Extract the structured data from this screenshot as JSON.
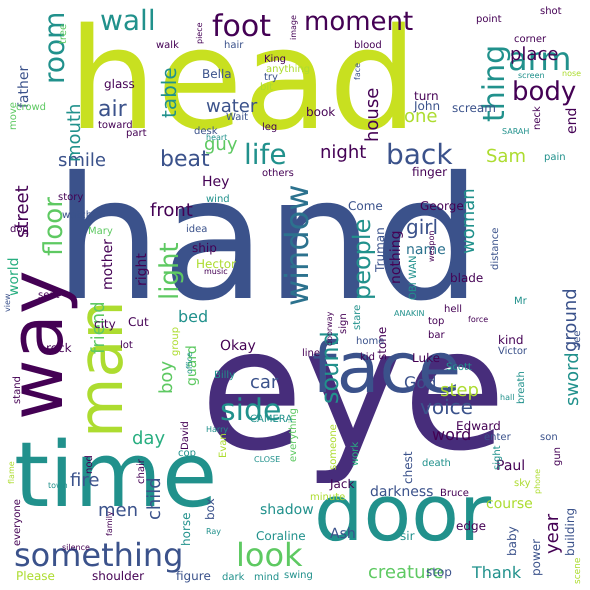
{
  "word_cloud": {
    "colors": {
      "dark_purple": "#440154",
      "deep_indigo": "#472d7b",
      "indigo": "#3b528b",
      "steel_blue": "#2c728e",
      "teal": "#21918c",
      "sea_green": "#28ae80",
      "green": "#5ec962",
      "lime": "#addc30",
      "yellow_green": "#c8e020"
    },
    "words": [
      {
        "text": "hand",
        "color": "#3b528b"
      },
      {
        "text": "eye",
        "color": "#472d7b"
      },
      {
        "text": "head",
        "color": "#c8e020"
      },
      {
        "text": "door",
        "color": "#21918c"
      },
      {
        "text": "face",
        "color": "#3b528b"
      },
      {
        "text": "time",
        "color": "#21918c"
      },
      {
        "text": "way",
        "color": "#440154"
      },
      {
        "text": "man",
        "color": "#addc30"
      },
      {
        "text": "something",
        "color": "#3b528b"
      },
      {
        "text": "look",
        "color": "#5ec962"
      },
      {
        "text": "foot",
        "color": "#440154"
      },
      {
        "text": "moment",
        "color": "#440154"
      },
      {
        "text": "wall",
        "color": "#21918c"
      },
      {
        "text": "room",
        "color": "#21918c"
      },
      {
        "text": "arm",
        "color": "#21918c"
      },
      {
        "text": "thing",
        "color": "#21918c"
      },
      {
        "text": "body",
        "color": "#440154"
      },
      {
        "text": "side",
        "color": "#21918c"
      },
      {
        "text": "window",
        "color": "#2c728e"
      },
      {
        "text": "floor",
        "color": "#5ec962"
      },
      {
        "text": "light",
        "color": "#5ec962"
      },
      {
        "text": "life",
        "color": "#21918c"
      },
      {
        "text": "beat",
        "color": "#3b528b"
      },
      {
        "text": "back",
        "color": "#3b528b"
      },
      {
        "text": "people",
        "color": "#21918c"
      },
      {
        "text": "sound",
        "color": "#21918c"
      },
      {
        "text": "voice",
        "color": "#3b528b"
      },
      {
        "text": "creature",
        "color": "#5ec962"
      },
      {
        "text": "table",
        "color": "#21918c"
      },
      {
        "text": "water",
        "color": "#3b528b"
      },
      {
        "text": "air",
        "color": "#3b528b"
      },
      {
        "text": "smile",
        "color": "#3b528b"
      },
      {
        "text": "place",
        "color": "#440154"
      },
      {
        "text": "house",
        "color": "#440154"
      },
      {
        "text": "one",
        "color": "#addc30"
      },
      {
        "text": "night",
        "color": "#440154"
      },
      {
        "text": "guy",
        "color": "#5ec962"
      },
      {
        "text": "Sam",
        "color": "#addc30"
      },
      {
        "text": "street",
        "color": "#440154"
      },
      {
        "text": "mouth",
        "color": "#21918c"
      },
      {
        "text": "front",
        "color": "#440154"
      },
      {
        "text": "Hey",
        "color": "#440154"
      },
      {
        "text": "girl",
        "color": "#3b528b"
      },
      {
        "text": "woman",
        "color": "#21918c"
      },
      {
        "text": "name",
        "color": "#2c728e"
      },
      {
        "text": "nothing",
        "color": "#440154"
      },
      {
        "text": "ground",
        "color": "#3b528b"
      },
      {
        "text": "sword",
        "color": "#21918c"
      },
      {
        "text": "year",
        "color": "#440154"
      },
      {
        "text": "step",
        "color": "#addc30"
      },
      {
        "text": "God",
        "color": "#3b528b"
      },
      {
        "text": "car",
        "color": "#3b528b"
      },
      {
        "text": "friend",
        "color": "#5ec962"
      },
      {
        "text": "mother",
        "color": "#440154"
      },
      {
        "text": "boy",
        "color": "#5ec962"
      },
      {
        "text": "day",
        "color": "#28ae80"
      },
      {
        "text": "bed",
        "color": "#21918c"
      },
      {
        "text": "guard",
        "color": "#5ec962"
      },
      {
        "text": "fire",
        "color": "#3b528b"
      },
      {
        "text": "men",
        "color": "#3b528b"
      },
      {
        "text": "child",
        "color": "#3b528b"
      },
      {
        "text": "word",
        "color": "#440154"
      },
      {
        "text": "Thank",
        "color": "#21918c"
      },
      {
        "text": "Ash",
        "color": "#3b528b"
      },
      {
        "text": "shadow",
        "color": "#21918c"
      },
      {
        "text": "darkness",
        "color": "#3b528b"
      },
      {
        "text": "Paul",
        "color": "#440154"
      },
      {
        "text": "Jack",
        "color": "#440154"
      },
      {
        "text": "father",
        "color": "#3b528b"
      },
      {
        "text": "end",
        "color": "#440154"
      },
      {
        "text": "course",
        "color": "#addc30"
      },
      {
        "text": "right",
        "color": "#440154"
      },
      {
        "text": "Okay",
        "color": "#440154"
      },
      {
        "text": "world",
        "color": "#28ae80"
      },
      {
        "text": "shoulder",
        "color": "#440154"
      },
      {
        "text": "Coraline",
        "color": "#21918c"
      },
      {
        "text": "Please",
        "color": "#addc30"
      },
      {
        "text": "building",
        "color": "#3b528b"
      },
      {
        "text": "box",
        "color": "#3b528b"
      },
      {
        "text": "stop",
        "color": "#3b528b"
      },
      {
        "text": "horse",
        "color": "#21918c"
      },
      {
        "text": "figure",
        "color": "#3b528b"
      },
      {
        "text": "power",
        "color": "#3b528b"
      },
      {
        "text": "baby",
        "color": "#3b528b"
      },
      {
        "text": "edge",
        "color": "#440154"
      },
      {
        "text": "sir",
        "color": "#21918c"
      },
      {
        "text": "chest",
        "color": "#3b528b"
      },
      {
        "text": "Luke",
        "color": "#440154"
      },
      {
        "text": "Edward",
        "color": "#440154"
      },
      {
        "text": "kind",
        "color": "#440154"
      },
      {
        "text": "stone",
        "color": "#440154"
      },
      {
        "text": "ship",
        "color": "#440154"
      },
      {
        "text": "Cut",
        "color": "#440154"
      },
      {
        "text": "rock",
        "color": "#440154"
      },
      {
        "text": "city",
        "color": "#440154"
      },
      {
        "text": "Hector",
        "color": "#addc30"
      },
      {
        "text": "Mary",
        "color": "#5ec962"
      },
      {
        "text": "Come",
        "color": "#3b528b"
      },
      {
        "text": "George",
        "color": "#440154"
      },
      {
        "text": "finger",
        "color": "#440154"
      },
      {
        "text": "Truman",
        "color": "#3b528b"
      },
      {
        "text": "blade",
        "color": "#440154"
      },
      {
        "text": "distance",
        "color": "#3b528b"
      },
      {
        "text": "John",
        "color": "#3b528b"
      },
      {
        "text": "Bella",
        "color": "#3b528b"
      },
      {
        "text": "book",
        "color": "#440154"
      },
      {
        "text": "scream",
        "color": "#3b528b"
      },
      {
        "text": "turn",
        "color": "#440154"
      },
      {
        "text": "hair",
        "color": "#3b528b"
      },
      {
        "text": "glass",
        "color": "#440154"
      },
      {
        "text": "desk",
        "color": "#3b528b"
      },
      {
        "text": "part",
        "color": "#440154"
      },
      {
        "text": "toward",
        "color": "#440154"
      },
      {
        "text": "crowd",
        "color": "#5ec962"
      },
      {
        "text": "leg",
        "color": "#440154"
      },
      {
        "text": "blood",
        "color": "#440154"
      },
      {
        "text": "corner",
        "color": "#440154"
      },
      {
        "text": "point",
        "color": "#440154"
      },
      {
        "text": "shot",
        "color": "#440154"
      },
      {
        "text": "walk",
        "color": "#440154"
      },
      {
        "text": "anything",
        "color": "#addc30"
      },
      {
        "text": "King",
        "color": "#440154"
      },
      {
        "text": "try",
        "color": "#3b528b"
      },
      {
        "text": "others",
        "color": "#440154"
      },
      {
        "text": "everything",
        "color": "#5ec962"
      },
      {
        "text": "someone",
        "color": "#addc30"
      },
      {
        "text": "work",
        "color": "#28ae80"
      },
      {
        "text": "death",
        "color": "#21918c"
      },
      {
        "text": "Victor",
        "color": "#3b528b"
      },
      {
        "text": "kid",
        "color": "#440154"
      },
      {
        "text": "home",
        "color": "#3b528b"
      },
      {
        "text": "line",
        "color": "#440154"
      },
      {
        "text": "hell",
        "color": "#440154"
      },
      {
        "text": "top",
        "color": "#440154"
      },
      {
        "text": "bar",
        "color": "#440154"
      },
      {
        "text": "Bruce",
        "color": "#440154"
      },
      {
        "text": "minute",
        "color": "#addc30"
      },
      {
        "text": "CAMERA",
        "color": "#21918c"
      },
      {
        "text": "Billy",
        "color": "#21918c"
      },
      {
        "text": "David",
        "color": "#440154"
      },
      {
        "text": "chair",
        "color": "#440154"
      },
      {
        "text": "watch",
        "color": "#3b528b"
      },
      {
        "text": "enter",
        "color": "#3b528b"
      },
      {
        "text": "son",
        "color": "#3b528b"
      },
      {
        "text": "sky",
        "color": "#addc30"
      },
      {
        "text": "sight",
        "color": "#21918c"
      },
      {
        "text": "gun",
        "color": "#440154"
      },
      {
        "text": "breath",
        "color": "#21918c"
      },
      {
        "text": "see",
        "color": "#3b528b"
      },
      {
        "text": "dog",
        "color": "#440154"
      },
      {
        "text": "story",
        "color": "#440154"
      },
      {
        "text": "swing",
        "color": "#21918c"
      },
      {
        "text": "mind",
        "color": "#21918c"
      },
      {
        "text": "dark",
        "color": "#21918c"
      },
      {
        "text": "scene",
        "color": "#addc30"
      },
      {
        "text": "stand",
        "color": "#440154"
      },
      {
        "text": "seat",
        "color": "#440154"
      },
      {
        "text": "music",
        "color": "#440154"
      },
      {
        "text": "wind",
        "color": "#21918c"
      },
      {
        "text": "idea",
        "color": "#3b528b"
      },
      {
        "text": "sit",
        "color": "#3b528b"
      },
      {
        "text": "heart",
        "color": "#21918c"
      },
      {
        "text": "Wait",
        "color": "#3b528b"
      },
      {
        "text": "bit",
        "color": "#addc30"
      },
      {
        "text": "image",
        "color": "#440154"
      },
      {
        "text": "piece",
        "color": "#440154"
      },
      {
        "text": "tree",
        "color": "#5ec962"
      },
      {
        "text": "face2",
        "color": "#3b528b"
      },
      {
        "text": "pain",
        "color": "#21918c"
      },
      {
        "text": "screen",
        "color": "#21918c"
      },
      {
        "text": "nose",
        "color": "#addc30"
      },
      {
        "text": "SARAH",
        "color": "#21918c"
      },
      {
        "text": "neck",
        "color": "#440154"
      },
      {
        "text": "weapon",
        "color": "#440154"
      },
      {
        "text": "OBI WAN",
        "color": "#21918c"
      },
      {
        "text": "ANAKIN",
        "color": "#21918c"
      },
      {
        "text": "doorway",
        "color": "#440154"
      },
      {
        "text": "stare",
        "color": "#21918c"
      },
      {
        "text": "sign",
        "color": "#440154"
      },
      {
        "text": "force",
        "color": "#440154"
      },
      {
        "text": "Mr",
        "color": "#21918c"
      },
      {
        "text": "Scott",
        "color": "#21918c"
      },
      {
        "text": "hall",
        "color": "#21918c"
      },
      {
        "text": "phone",
        "color": "#addc30"
      },
      {
        "text": "Evan",
        "color": "#addc30"
      },
      {
        "text": "office",
        "color": "#21918c"
      },
      {
        "text": "lot",
        "color": "#440154"
      },
      {
        "text": "group",
        "color": "#addc30"
      },
      {
        "text": "Harry",
        "color": "#21918c"
      },
      {
        "text": "cop",
        "color": "#21918c"
      },
      {
        "text": "CLOSE",
        "color": "#21918c"
      },
      {
        "text": "town",
        "color": "#21918c"
      },
      {
        "text": "Ray",
        "color": "#21918c"
      },
      {
        "text": "silence",
        "color": "#440154"
      },
      {
        "text": "family",
        "color": "#440154"
      },
      {
        "text": "everyone",
        "color": "#440154"
      },
      {
        "text": "flame",
        "color": "#addc30"
      },
      {
        "text": "nod",
        "color": "#440154"
      },
      {
        "text": "view",
        "color": "#3b528b"
      },
      {
        "text": "move",
        "color": "#5ec962"
      },
      {
        "text": "tree2",
        "color": "#5ec962"
      }
    ]
  }
}
